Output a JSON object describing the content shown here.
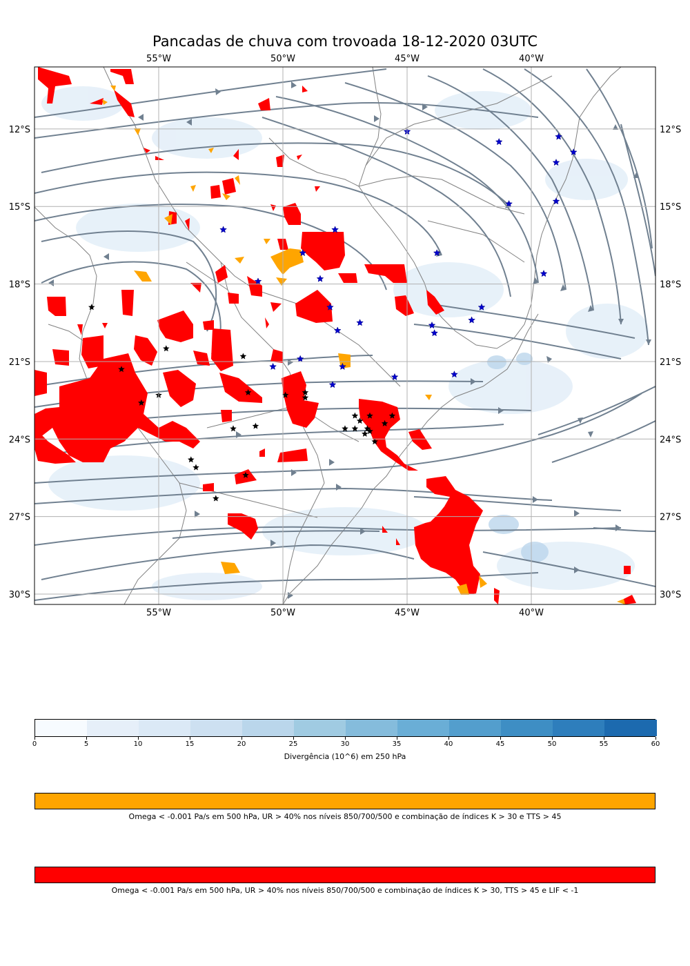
{
  "title": "Pancadas de chuva com trovoada 18-12-2020 03UTC",
  "map": {
    "lon_labels": [
      "55°W",
      "50°W",
      "45°W",
      "40°W"
    ],
    "lat_labels": [
      "12°S",
      "15°S",
      "18°S",
      "21°S",
      "24°S",
      "27°S",
      "30°S"
    ],
    "lon_values": [
      -55,
      -50,
      -45,
      -40
    ],
    "lat_values": [
      -12,
      -15,
      -18,
      -21,
      -24,
      -27,
      -30
    ],
    "extent": {
      "lon_min": -60,
      "lon_max": -35,
      "lat_min": -30.4,
      "lat_max": -9.6
    },
    "stars_blue": [
      [
        -45,
        -12.1
      ],
      [
        -41.3,
        -12.5
      ],
      [
        -38.9,
        -12.3
      ],
      [
        -38.3,
        -12.9
      ],
      [
        -39,
        -13.3
      ],
      [
        -40.9,
        -14.9
      ],
      [
        -39,
        -14.8
      ],
      [
        -52.4,
        -15.9
      ],
      [
        -47.9,
        -15.9
      ],
      [
        -43.8,
        -16.8
      ],
      [
        -49.2,
        -16.8
      ],
      [
        -51,
        -17.9
      ],
      [
        -48.5,
        -17.8
      ],
      [
        -39.5,
        -17.6
      ],
      [
        -42,
        -18.9
      ],
      [
        -48.1,
        -18.9
      ],
      [
        -42.4,
        -19.4
      ],
      [
        -46.9,
        -19.5
      ],
      [
        -47.8,
        -19.8
      ],
      [
        -43.9,
        -19.9
      ],
      [
        -44,
        -19.6
      ],
      [
        -49.3,
        -20.9
      ],
      [
        -50.4,
        -21.2
      ],
      [
        -47.6,
        -21.2
      ],
      [
        -45.5,
        -21.6
      ],
      [
        -43.1,
        -21.5
      ],
      [
        -48,
        -21.9
      ]
    ],
    "stars_black": [
      [
        -57.7,
        -18.9
      ],
      [
        -54.7,
        -20.5
      ],
      [
        -51.6,
        -20.8
      ],
      [
        -56.5,
        -21.3
      ],
      [
        -55,
        -22.3
      ],
      [
        -55.7,
        -22.6
      ],
      [
        -51.4,
        -22.2
      ],
      [
        -49.9,
        -22.3
      ],
      [
        -49.1,
        -22.2
      ],
      [
        -49.1,
        -22.4
      ],
      [
        -47.1,
        -23.1
      ],
      [
        -46.9,
        -23.3
      ],
      [
        -46.5,
        -23.1
      ],
      [
        -45.9,
        -23.4
      ],
      [
        -45.6,
        -23.1
      ],
      [
        -47.5,
        -23.6
      ],
      [
        -47.1,
        -23.6
      ],
      [
        -46.6,
        -23.6
      ],
      [
        -46.5,
        -23.7
      ],
      [
        -46.7,
        -23.8
      ],
      [
        -46.3,
        -24.1
      ],
      [
        -51.1,
        -23.5
      ],
      [
        -52,
        -23.6
      ],
      [
        -53.7,
        -24.8
      ],
      [
        -53.5,
        -25.1
      ],
      [
        -51.5,
        -25.4
      ],
      [
        -52.7,
        -26.3
      ]
    ]
  },
  "colorbar_div": {
    "label": "Divergência (10^6) em 250 hPa",
    "ticks": [
      "0",
      "5",
      "10",
      "15",
      "20",
      "25",
      "30",
      "35",
      "40",
      "45",
      "50",
      "55",
      "60"
    ],
    "colors": [
      "#f7fbff",
      "#e6eff9",
      "#dbe9f6",
      "#cde0f1",
      "#bad6eb",
      "#a0cbe2",
      "#85bcdc",
      "#6aaed6",
      "#539ecd",
      "#3e8ec4",
      "#2e7ebc",
      "#1c6aaf"
    ]
  },
  "colorbar_orange": {
    "color": "#ffa500",
    "label": "Omega < -0.001 Pa/s em 500 hPa, UR > 40% nos níveis 850/700/500 e combinação de índices K > 30 e TTS > 45"
  },
  "colorbar_red": {
    "color": "#ff0000",
    "label": "Omega < -0.001 Pa/s em 500 hPa, UR > 40% nos níveis 850/700/500 e combinação de índices K > 30, TTS > 45 e LIF < -1"
  }
}
